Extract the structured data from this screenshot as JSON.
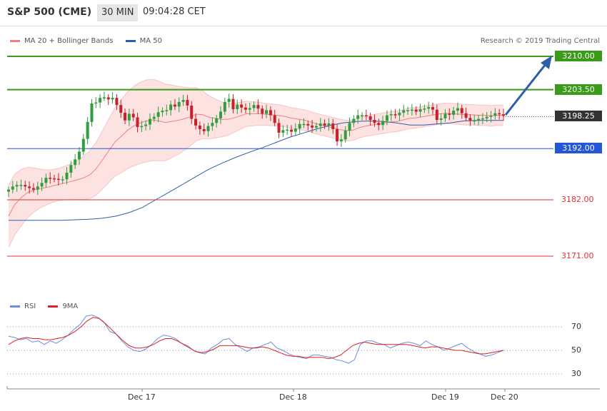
{
  "header": {
    "title": "S&P 500 (CME)",
    "timeframe": "30 MIN",
    "time": "09:04:28 CET"
  },
  "legend": {
    "bb_label": "MA 20 + Bollinger Bands",
    "ma50_label": "MA 50"
  },
  "credit": "Research © 2019 Trading Central",
  "rsi_legend": {
    "rsi_label": "RSI",
    "ma_label": "9MA"
  },
  "colors": {
    "green": "#3a9a1a",
    "blue": "#2457d6",
    "red": "#e03030",
    "arrow": "#2d5fa8",
    "up": "#2e9e3e",
    "down": "#c8202a"
  },
  "chart_data": {
    "type": "candlestick",
    "instrument": "S&P 500 (CME)",
    "timeframe": "30 MIN",
    "price_range": [
      3165,
      3214
    ],
    "x_labels": [
      "Dec 17",
      "Dec 18",
      "Dec 19",
      "Dec 20"
    ],
    "levels": [
      {
        "value": 3210.0,
        "label": "3210.00",
        "color": "#3a9a1a",
        "style": "label-box"
      },
      {
        "value": 3203.5,
        "label": "3203.50",
        "color": "#3a9a1a",
        "style": "label-box"
      },
      {
        "value": 3198.25,
        "label": "3198.25",
        "color": "#333333",
        "style": "current"
      },
      {
        "value": 3192.0,
        "label": "3192.00",
        "color": "#2457d6",
        "style": "label-box"
      },
      {
        "value": 3182.0,
        "label": "3182.00",
        "color": "#e03030",
        "style": "text"
      },
      {
        "value": 3171.0,
        "label": "3171.00",
        "color": "#e03030",
        "style": "text"
      }
    ],
    "closes": [
      3184.0,
      3184.6,
      3184.9,
      3184.9,
      3184.6,
      3184.3,
      3184.0,
      3184.6,
      3185.3,
      3186.3,
      3186.2,
      3186.1,
      3185.9,
      3186.0,
      3187.3,
      3188.8,
      3189.9,
      3191.4,
      3193.9,
      3197.2,
      3200.8,
      3201.0,
      3201.9,
      3202.0,
      3201.6,
      3201.9,
      3200.5,
      3199.0,
      3197.5,
      3198.8,
      3198.1,
      3196.2,
      3196.4,
      3196.7,
      3197.8,
      3198.2,
      3199.1,
      3199.4,
      3199.5,
      3200.6,
      3200.2,
      3201.1,
      3201.5,
      3200.4,
      3197.8,
      3196.5,
      3195.8,
      3195.4,
      3196.4,
      3197.0,
      3197.9,
      3199.2,
      3201.1,
      3201.7,
      3199.7,
      3200.6,
      3200.0,
      3199.6,
      3199.9,
      3200.5,
      3199.8,
      3198.8,
      3199.5,
      3198.5,
      3197.0,
      3195.1,
      3195.6,
      3195.7,
      3195.3,
      3195.9,
      3196.8,
      3196.8,
      3196.5,
      3196.1,
      3196.4,
      3196.9,
      3196.5,
      3196.9,
      3195.8,
      3193.4,
      3193.8,
      3195.5,
      3197.0,
      3197.8,
      3198.5,
      3198.5,
      3198.3,
      3197.6,
      3197.0,
      3196.6,
      3197.4,
      3198.5,
      3198.7,
      3198.5,
      3199.0,
      3199.5,
      3199.5,
      3199.6,
      3199.2,
      3199.7,
      3199.8,
      3200.1,
      3199.6,
      3197.6,
      3197.9,
      3198.8,
      3198.6,
      3199.4,
      3199.9,
      3198.9,
      3198.0,
      3197.5,
      3197.5,
      3197.8,
      3197.9,
      3198.2,
      3198.4,
      3198.9,
      3198.7,
      3198.4
    ],
    "ma20": [
      3178.8,
      3181.1,
      3182.4,
      3183.4,
      3183.9,
      3184.2,
      3184.4,
      3184.7,
      3185.0,
      3185.3,
      3185.6,
      3185.9,
      3186.3,
      3186.9,
      3188.1,
      3189.8,
      3191.6,
      3193.3,
      3194.4,
      3195.6,
      3196.4,
      3197.0,
      3197.4,
      3197.6,
      3197.4,
      3197.1,
      3197.3,
      3197.5,
      3197.8,
      3198.2,
      3198.7,
      3198.6,
      3198.1,
      3197.9,
      3197.7,
      3197.7,
      3198.0,
      3198.4,
      3198.8,
      3198.8,
      3198.8,
      3198.7,
      3198.6,
      3198.5,
      3198.3,
      3198.0,
      3197.8,
      3197.6,
      3197.3,
      3196.9,
      3196.6,
      3196.3,
      3196.0,
      3195.7,
      3195.5,
      3195.6,
      3196.1,
      3196.4,
      3196.6,
      3196.8,
      3197.0,
      3197.2,
      3197.3,
      3197.6,
      3197.9,
      3198.0,
      3198.2,
      3198.4,
      3198.6,
      3198.8,
      3198.9,
      3198.8,
      3198.7,
      3198.6,
      3198.6,
      3198.5,
      3198.5,
      3198.4,
      3198.5,
      3198.5
    ],
    "ma50": [
      3178.0,
      3178.0,
      3178.0,
      3178.0,
      3178.0,
      3178.1,
      3178.2,
      3178.4,
      3178.8,
      3179.5,
      3180.5,
      3182.0,
      3183.5,
      3185.0,
      3186.5,
      3188.0,
      3189.2,
      3190.3,
      3191.3,
      3192.2,
      3193.2,
      3194.2,
      3195.0,
      3195.8,
      3196.5,
      3197.0,
      3197.3,
      3197.4,
      3197.3,
      3197.0,
      3196.6,
      3196.6,
      3196.8,
      3197.0,
      3197.4,
      3197.5,
      3197.5,
      3197.5
    ],
    "rsi_levels": [
      70,
      50,
      30
    ],
    "rsi": [
      62,
      61,
      59,
      60,
      57,
      58,
      55,
      58,
      56,
      59,
      63,
      68,
      72,
      79,
      80,
      78,
      74,
      66,
      64,
      58,
      53,
      50,
      49,
      51,
      55,
      60,
      63,
      62,
      60,
      56,
      54,
      50,
      48,
      47,
      52,
      55,
      59,
      60,
      55,
      52,
      49,
      52,
      53,
      55,
      57,
      52,
      50,
      47,
      45,
      44,
      43,
      46,
      46,
      45,
      44,
      42,
      41,
      39,
      42,
      55,
      58,
      58,
      56,
      55,
      52,
      54,
      56,
      57,
      56,
      54,
      58,
      55,
      53,
      50,
      52,
      54,
      56,
      52,
      49,
      47,
      45,
      46,
      48,
      50
    ],
    "rsi_ma": [
      55,
      58,
      60,
      61,
      60,
      60,
      59,
      59,
      60,
      61,
      63,
      66,
      70,
      75,
      78,
      77,
      73,
      68,
      63,
      58,
      54,
      52,
      52,
      53,
      55,
      58,
      60,
      60,
      58,
      55,
      52,
      49,
      48,
      49,
      51,
      54,
      54,
      54,
      54,
      53,
      52,
      52,
      53,
      52,
      50,
      48,
      46,
      45,
      45,
      44,
      44,
      44,
      44,
      43,
      44,
      46,
      50,
      54,
      56,
      57,
      56,
      55,
      55,
      55,
      55,
      55,
      55,
      54,
      53,
      52,
      53,
      53,
      52,
      51,
      50,
      50,
      49,
      48,
      47,
      47,
      48,
      49,
      50
    ]
  }
}
